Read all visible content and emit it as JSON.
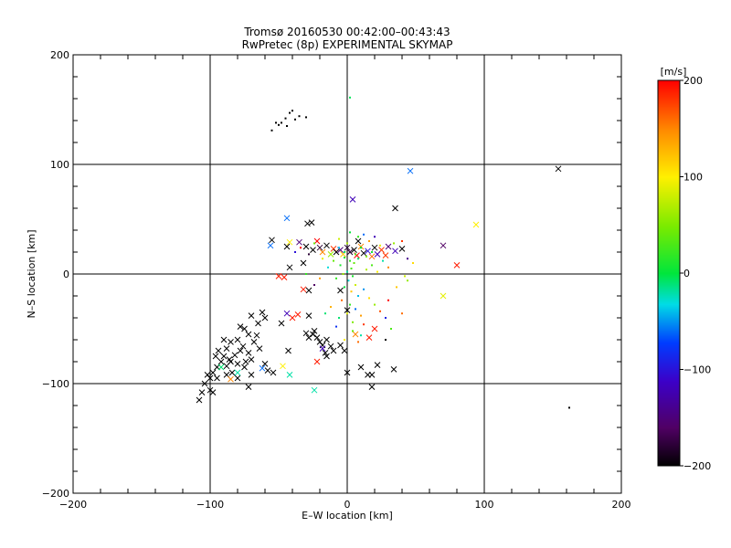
{
  "chart_data": {
    "type": "scatter",
    "title": "Tromsø 20160530 00:42:00–00:43:43",
    "subtitle": "RwPretec (8p) EXPERIMENTAL SKYMAP",
    "xlabel": "E–W location [km]",
    "ylabel": "N–S location [km]",
    "xlim": [
      -200,
      200
    ],
    "ylim": [
      -200,
      200
    ],
    "xticks": [
      "−200",
      "−100",
      "0",
      "100",
      "200"
    ],
    "yticks": [
      "−200",
      "−100",
      "0",
      "100",
      "200"
    ],
    "grid": true,
    "colorbar": {
      "unit": "[m/s]",
      "min": -200,
      "max": 200,
      "ticks": [
        "200",
        "100",
        "0",
        "−100",
        "−200"
      ],
      "tick_values": [
        200,
        100,
        0,
        -100,
        -200
      ]
    },
    "marker_types": [
      "x",
      "dot"
    ],
    "points": [
      [
        -48,
        138,
        -200,
        "dot"
      ],
      [
        -45,
        142,
        -200,
        "dot"
      ],
      [
        -42,
        147,
        -200,
        "dot"
      ],
      [
        -40,
        149,
        -200,
        "dot"
      ],
      [
        -38,
        141,
        -200,
        "dot"
      ],
      [
        -44,
        135,
        -200,
        "dot"
      ],
      [
        -50,
        136,
        -200,
        "dot"
      ],
      [
        -55,
        131,
        -200,
        "dot"
      ],
      [
        -30,
        143,
        -200,
        "dot"
      ],
      [
        -35,
        144,
        -200,
        "dot"
      ],
      [
        -52,
        138,
        -200,
        "dot"
      ],
      [
        2,
        161,
        -5,
        "dot"
      ],
      [
        46,
        94,
        -60,
        "x"
      ],
      [
        154,
        96,
        -200,
        "x"
      ],
      [
        94,
        45,
        100,
        "x"
      ],
      [
        4,
        68,
        -120,
        "x"
      ],
      [
        35,
        60,
        -200,
        "x"
      ],
      [
        -44,
        51,
        -60,
        "x"
      ],
      [
        -42,
        29,
        100,
        "x"
      ],
      [
        -26,
        47,
        -200,
        "x"
      ],
      [
        -29,
        46,
        -200,
        "x"
      ],
      [
        -56,
        26,
        -60,
        "x"
      ],
      [
        -55,
        31,
        -200,
        "x"
      ],
      [
        -44,
        25,
        -200,
        "x"
      ],
      [
        -35,
        29,
        -150,
        "x"
      ],
      [
        -30,
        25,
        -200,
        "x"
      ],
      [
        -25,
        22,
        -200,
        "x"
      ],
      [
        -20,
        24,
        -180,
        "x"
      ],
      [
        -15,
        26,
        -200,
        "x"
      ],
      [
        -10,
        23,
        180,
        "x"
      ],
      [
        -5,
        22,
        -150,
        "x"
      ],
      [
        0,
        24,
        -180,
        "x"
      ],
      [
        5,
        22,
        -200,
        "x"
      ],
      [
        10,
        25,
        150,
        "x"
      ],
      [
        15,
        21,
        -100,
        "x"
      ],
      [
        20,
        24,
        -200,
        "x"
      ],
      [
        25,
        22,
        180,
        "x"
      ],
      [
        30,
        25,
        -150,
        "x"
      ],
      [
        35,
        21,
        -120,
        "x"
      ],
      [
        40,
        23,
        -200,
        "x"
      ],
      [
        -18,
        20,
        150,
        "x"
      ],
      [
        -12,
        18,
        60,
        "x"
      ],
      [
        -8,
        20,
        -200,
        "x"
      ],
      [
        -3,
        18,
        120,
        "x"
      ],
      [
        2,
        20,
        -180,
        "x"
      ],
      [
        7,
        17,
        200,
        "x"
      ],
      [
        12,
        19,
        -200,
        "x"
      ],
      [
        18,
        16,
        160,
        "x"
      ],
      [
        22,
        18,
        -120,
        "x"
      ],
      [
        28,
        17,
        180,
        "x"
      ],
      [
        -22,
        30,
        200,
        "x"
      ],
      [
        8,
        30,
        -200,
        "x"
      ],
      [
        70,
        26,
        -160,
        "x"
      ],
      [
        80,
        8,
        190,
        "x"
      ],
      [
        70,
        -20,
        90,
        "x"
      ],
      [
        -46,
        -3,
        190,
        "x"
      ],
      [
        -42,
        6,
        -200,
        "x"
      ],
      [
        -32,
        10,
        -200,
        "x"
      ],
      [
        -60,
        -40,
        -200,
        "x"
      ],
      [
        -62,
        -35,
        -200,
        "x"
      ],
      [
        -70,
        -38,
        -200,
        "x"
      ],
      [
        -65,
        -45,
        -200,
        "x"
      ],
      [
        -75,
        -50,
        -200,
        "x"
      ],
      [
        -72,
        -55,
        -200,
        "x"
      ],
      [
        -80,
        -60,
        -200,
        "x"
      ],
      [
        -85,
        -62,
        -200,
        "x"
      ],
      [
        -78,
        -70,
        -200,
        "x"
      ],
      [
        -88,
        -68,
        -200,
        "x"
      ],
      [
        -90,
        -75,
        -200,
        "x"
      ],
      [
        -92,
        -80,
        -200,
        "x"
      ],
      [
        -85,
        -80,
        -200,
        "x"
      ],
      [
        -80,
        -82,
        -200,
        "x"
      ],
      [
        -75,
        -85,
        -200,
        "x"
      ],
      [
        -70,
        -78,
        -200,
        "x"
      ],
      [
        -72,
        -72,
        -200,
        "x"
      ],
      [
        -76,
        -66,
        -200,
        "x"
      ],
      [
        -68,
        -62,
        -200,
        "x"
      ],
      [
        -95,
        -85,
        -200,
        "x"
      ],
      [
        -98,
        -90,
        -200,
        "x"
      ],
      [
        -100,
        -95,
        -200,
        "x"
      ],
      [
        -102,
        -92,
        -200,
        "x"
      ],
      [
        -104,
        -100,
        -200,
        "x"
      ],
      [
        -106,
        -108,
        -200,
        "x"
      ],
      [
        -108,
        -115,
        -200,
        "x"
      ],
      [
        -100,
        -106,
        -200,
        "x"
      ],
      [
        -98,
        -108,
        -200,
        "x"
      ],
      [
        -95,
        -95,
        -200,
        "x"
      ],
      [
        -88,
        -92,
        -200,
        "x"
      ],
      [
        -84,
        -90,
        -200,
        "x"
      ],
      [
        -80,
        -95,
        -200,
        "x"
      ],
      [
        -90,
        -60,
        -200,
        "x"
      ],
      [
        -94,
        -70,
        -200,
        "x"
      ],
      [
        -96,
        -75,
        -200,
        "x"
      ],
      [
        -78,
        -48,
        -200,
        "x"
      ],
      [
        -66,
        -56,
        -200,
        "x"
      ],
      [
        -64,
        -68,
        -200,
        "x"
      ],
      [
        -70,
        -92,
        -200,
        "x"
      ],
      [
        -72,
        -103,
        -200,
        "x"
      ],
      [
        -60,
        -82,
        -200,
        "x"
      ],
      [
        -58,
        -88,
        -200,
        "x"
      ],
      [
        -54,
        -90,
        -200,
        "x"
      ],
      [
        -62,
        -86,
        -60,
        "x"
      ],
      [
        -82,
        -74,
        -200,
        "x"
      ],
      [
        -86,
        -78,
        -200,
        "x"
      ],
      [
        -74,
        -80,
        -200,
        "x"
      ],
      [
        -88,
        -84,
        -200,
        "x"
      ],
      [
        -25,
        -55,
        -200,
        "x"
      ],
      [
        -22,
        -58,
        -200,
        "x"
      ],
      [
        -20,
        -62,
        -200,
        "x"
      ],
      [
        -18,
        -65,
        -200,
        "x"
      ],
      [
        -15,
        -60,
        -200,
        "x"
      ],
      [
        -12,
        -66,
        -200,
        "x"
      ],
      [
        -10,
        -70,
        -200,
        "x"
      ],
      [
        -24,
        -52,
        -200,
        "x"
      ],
      [
        -28,
        -58,
        -200,
        "x"
      ],
      [
        -30,
        -54,
        -200,
        "x"
      ],
      [
        -5,
        -65,
        -200,
        "x"
      ],
      [
        -2,
        -70,
        -200,
        "x"
      ],
      [
        -16,
        -72,
        -200,
        "x"
      ],
      [
        -22,
        -80,
        190,
        "x"
      ],
      [
        -15,
        -75,
        -200,
        "x"
      ],
      [
        -18,
        -68,
        -120,
        "x"
      ],
      [
        -48,
        -45,
        -200,
        "x"
      ],
      [
        -40,
        -40,
        190,
        "x"
      ],
      [
        -36,
        -37,
        190,
        "x"
      ],
      [
        -44,
        -36,
        -120,
        "x"
      ],
      [
        -43,
        -70,
        -200,
        "x"
      ],
      [
        -47,
        -84,
        100,
        "x"
      ],
      [
        -42,
        -92,
        -20,
        "x"
      ],
      [
        -24,
        -106,
        -20,
        "x"
      ],
      [
        0,
        -90,
        -200,
        "x"
      ],
      [
        10,
        -85,
        -200,
        "x"
      ],
      [
        15,
        -92,
        -200,
        "x"
      ],
      [
        18,
        -92,
        -200,
        "x"
      ],
      [
        22,
        -83,
        -200,
        "x"
      ],
      [
        34,
        -87,
        -200,
        "x"
      ],
      [
        18,
        -103,
        -200,
        "x"
      ],
      [
        20,
        -50,
        190,
        "x"
      ],
      [
        16,
        -58,
        190,
        "x"
      ],
      [
        6,
        -55,
        150,
        "x"
      ],
      [
        0,
        -33,
        -200,
        "x"
      ],
      [
        -5,
        -15,
        -200,
        "x"
      ],
      [
        -28,
        -38,
        -200,
        "x"
      ],
      [
        -28,
        -15,
        -200,
        "x"
      ],
      [
        -32,
        -14,
        190,
        "x"
      ],
      [
        -50,
        -2,
        190,
        "x"
      ],
      [
        -80,
        -90,
        -20,
        "x"
      ],
      [
        -85,
        -96,
        150,
        "x"
      ],
      [
        -92,
        -85,
        -10,
        "x"
      ],
      [
        162,
        -122,
        -200,
        "dot"
      ],
      [
        -2,
        15,
        0,
        "dot"
      ],
      [
        2,
        12,
        20,
        "dot"
      ],
      [
        5,
        10,
        40,
        "dot"
      ],
      [
        8,
        14,
        -10,
        "dot"
      ],
      [
        -5,
        8,
        10,
        "dot"
      ],
      [
        3,
        5,
        30,
        "dot"
      ],
      [
        0,
        2,
        -20,
        "dot"
      ],
      [
        -3,
        0,
        60,
        "dot"
      ],
      [
        4,
        -2,
        10,
        "dot"
      ],
      [
        1,
        -6,
        -30,
        "dot"
      ],
      [
        6,
        -10,
        80,
        "dot"
      ],
      [
        -2,
        -12,
        0,
        "dot"
      ],
      [
        3,
        -16,
        120,
        "dot"
      ],
      [
        8,
        -20,
        -40,
        "dot"
      ],
      [
        -4,
        -24,
        160,
        "dot"
      ],
      [
        2,
        -28,
        20,
        "dot"
      ],
      [
        6,
        -32,
        -60,
        "dot"
      ],
      [
        0,
        -36,
        90,
        "dot"
      ],
      [
        10,
        -38,
        140,
        "dot"
      ],
      [
        -6,
        -40,
        -10,
        "dot"
      ],
      [
        4,
        -44,
        50,
        "dot"
      ],
      [
        12,
        -46,
        180,
        "dot"
      ],
      [
        -8,
        -48,
        -80,
        "dot"
      ],
      [
        14,
        4,
        70,
        "dot"
      ],
      [
        18,
        8,
        30,
        "dot"
      ],
      [
        22,
        2,
        100,
        "dot"
      ],
      [
        26,
        12,
        -20,
        "dot"
      ],
      [
        30,
        6,
        150,
        "dot"
      ],
      [
        -10,
        12,
        40,
        "dot"
      ],
      [
        -14,
        6,
        -30,
        "dot"
      ],
      [
        -18,
        14,
        90,
        "dot"
      ],
      [
        -8,
        -4,
        20,
        "dot"
      ],
      [
        12,
        -14,
        -50,
        "dot"
      ],
      [
        16,
        -22,
        110,
        "dot"
      ],
      [
        20,
        -28,
        60,
        "dot"
      ],
      [
        24,
        -34,
        170,
        "dot"
      ],
      [
        28,
        -40,
        -90,
        "dot"
      ],
      [
        -12,
        -30,
        130,
        "dot"
      ],
      [
        -16,
        -36,
        -10,
        "dot"
      ],
      [
        8,
        34,
        20,
        "dot"
      ],
      [
        12,
        36,
        -60,
        "dot"
      ],
      [
        -6,
        32,
        80,
        "dot"
      ],
      [
        2,
        38,
        0,
        "dot"
      ],
      [
        16,
        30,
        140,
        "dot"
      ],
      [
        20,
        34,
        -120,
        "dot"
      ],
      [
        34,
        28,
        60,
        "dot"
      ],
      [
        40,
        30,
        180,
        "dot"
      ],
      [
        44,
        14,
        -140,
        "dot"
      ],
      [
        48,
        10,
        110,
        "dot"
      ],
      [
        -24,
        28,
        40,
        "dot"
      ],
      [
        -28,
        18,
        -180,
        "dot"
      ],
      [
        10,
        24,
        0,
        "dot"
      ],
      [
        6,
        18,
        30,
        "dot"
      ],
      [
        -2,
        20,
        -10,
        "dot"
      ],
      [
        14,
        16,
        50,
        "dot"
      ],
      [
        0,
        28,
        70,
        "dot"
      ],
      [
        -6,
        24,
        -40,
        "dot"
      ],
      [
        18,
        20,
        10,
        "dot"
      ],
      [
        24,
        26,
        90,
        "dot"
      ],
      [
        4,
        -52,
        40,
        "dot"
      ],
      [
        10,
        -56,
        -20,
        "dot"
      ],
      [
        -2,
        -60,
        100,
        "dot"
      ],
      [
        8,
        -62,
        160,
        "dot"
      ],
      [
        30,
        -24,
        200,
        "dot"
      ],
      [
        36,
        -12,
        120,
        "dot"
      ],
      [
        42,
        -2,
        80,
        "dot"
      ],
      [
        -20,
        -4,
        140,
        "dot"
      ],
      [
        -24,
        -10,
        -160,
        "dot"
      ],
      [
        -30,
        0,
        20,
        "dot"
      ],
      [
        28,
        -60,
        -200,
        "dot"
      ],
      [
        32,
        -50,
        30,
        "dot"
      ],
      [
        40,
        -36,
        160,
        "dot"
      ],
      [
        44,
        -6,
        60,
        "dot"
      ],
      [
        -38,
        20,
        -100,
        "dot"
      ],
      [
        -34,
        24,
        200,
        "dot"
      ]
    ]
  }
}
